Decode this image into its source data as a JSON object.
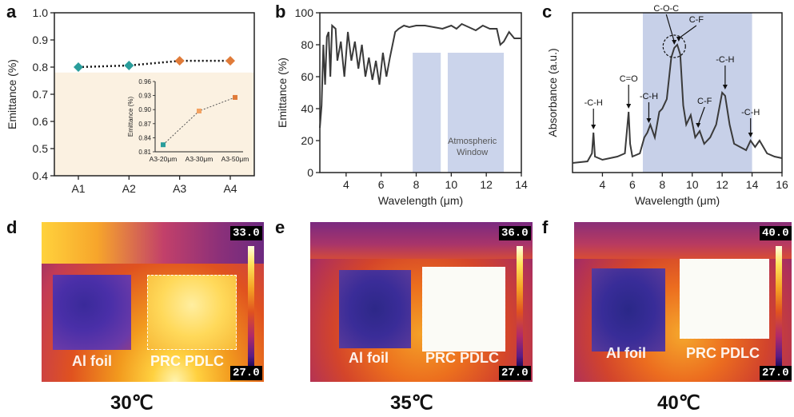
{
  "panels": {
    "a": "a",
    "b": "b",
    "c": "c",
    "d": "d",
    "e": "e",
    "f": "f"
  },
  "chart_data": [
    {
      "id": "a",
      "type": "scatter",
      "categories": [
        "A1",
        "A2",
        "A3",
        "A4"
      ],
      "values": [
        0.8,
        0.806,
        0.823,
        0.823
      ],
      "colors": [
        "#2a9d9b",
        "#2a9d9b",
        "#e07b39",
        "#e07b39"
      ],
      "xlabel": "",
      "ylabel": "Emittance (%)",
      "ylim": [
        0.4,
        1.0
      ],
      "yticks": [
        "0.4",
        "0.5",
        "0.6",
        "0.7",
        "0.8",
        "0.9",
        "1.0"
      ],
      "shaded_below": 0.78,
      "shade_color": "#fbf1e1",
      "inset": {
        "type": "scatter",
        "categories": [
          "A3-20μm",
          "A3-30μm",
          "A3-50μm"
        ],
        "values": [
          0.825,
          0.897,
          0.926
        ],
        "colors": [
          "#2a9d9b",
          "#f4a261",
          "#e07b39"
        ],
        "ylabel": "Emittance (%)",
        "ylim": [
          0.81,
          0.96
        ],
        "yticks": [
          "0.81",
          "0.84",
          "0.87",
          "0.90",
          "0.93",
          "0.96"
        ]
      }
    },
    {
      "id": "b",
      "type": "line",
      "xlabel": "Wavelength (μm)",
      "ylabel": "Emittance (%)",
      "xlim": [
        2.5,
        14
      ],
      "ylim": [
        0,
        100
      ],
      "xticks": [
        "4",
        "6",
        "8",
        "10",
        "12",
        "14"
      ],
      "yticks": [
        "0",
        "20",
        "40",
        "60",
        "80",
        "100"
      ],
      "annotation": "Atmospheric\nWindow",
      "window_color": "#b9c6e4",
      "series": [
        {
          "x": [
            2.5,
            2.6,
            2.7,
            2.8,
            2.9,
            3.0,
            3.1,
            3.2,
            3.4,
            3.5,
            3.7,
            3.9,
            4.1,
            4.3,
            4.5,
            4.7,
            4.9,
            5.1,
            5.3,
            5.5,
            5.7,
            5.9,
            6.1,
            6.3,
            6.5,
            6.8,
            7.0,
            7.3,
            7.6,
            8.0,
            8.5,
            9.0,
            9.5,
            10.0,
            10.3,
            10.6,
            11.0,
            11.4,
            11.8,
            12.2,
            12.6,
            12.8,
            13.0,
            13.3,
            13.6,
            14.0
          ],
          "y": [
            28,
            42,
            80,
            55,
            85,
            88,
            60,
            92,
            90,
            70,
            82,
            60,
            88,
            70,
            82,
            65,
            80,
            60,
            72,
            58,
            70,
            55,
            75,
            60,
            72,
            88,
            90,
            92,
            91,
            92,
            92,
            91,
            90,
            92,
            90,
            93,
            91,
            89,
            92,
            90,
            90,
            80,
            82,
            88,
            84,
            84
          ]
        }
      ],
      "window_bands": [
        {
          "x": [
            7.8,
            9.4
          ],
          "top": 75
        },
        {
          "x": [
            9.8,
            13.0
          ],
          "top": 75
        }
      ]
    },
    {
      "id": "c",
      "type": "line",
      "xlabel": "Wavelength (μm)",
      "ylabel": "Absorbance (a.u.)",
      "xlim": [
        2,
        16
      ],
      "ylim": [
        0,
        1
      ],
      "xticks": [
        "4",
        "6",
        "8",
        "10",
        "12",
        "14",
        "16"
      ],
      "shade_range": [
        6.7,
        14
      ],
      "shade_color": "#c7d0e8",
      "series": [
        {
          "x": [
            2.0,
            3.0,
            3.3,
            3.4,
            3.5,
            4.0,
            4.5,
            5.0,
            5.5,
            5.75,
            5.85,
            6.0,
            6.5,
            6.8,
            7.0,
            7.2,
            7.5,
            7.8,
            8.0,
            8.3,
            8.6,
            8.8,
            9.0,
            9.2,
            9.4,
            9.6,
            9.9,
            10.2,
            10.5,
            10.8,
            11.2,
            11.6,
            12.0,
            12.2,
            12.5,
            12.8,
            13.2,
            13.6,
            13.9,
            14.2,
            14.5,
            15.0,
            15.5,
            16.0
          ],
          "y": [
            0.06,
            0.07,
            0.12,
            0.25,
            0.1,
            0.08,
            0.09,
            0.1,
            0.12,
            0.38,
            0.18,
            0.1,
            0.12,
            0.22,
            0.25,
            0.3,
            0.22,
            0.38,
            0.4,
            0.46,
            0.72,
            0.78,
            0.8,
            0.74,
            0.42,
            0.3,
            0.36,
            0.22,
            0.26,
            0.18,
            0.22,
            0.3,
            0.5,
            0.48,
            0.3,
            0.18,
            0.16,
            0.14,
            0.2,
            0.16,
            0.2,
            0.12,
            0.1,
            0.09
          ]
        }
      ],
      "annotations": [
        {
          "text": "-C-H",
          "x": 3.4,
          "y": 0.25
        },
        {
          "text": "C=O",
          "x": 5.75,
          "y": 0.38
        },
        {
          "text": "-C-H",
          "x": 7.1,
          "y": 0.29
        },
        {
          "text": "C-O-C",
          "x": 8.8,
          "y": 0.78
        },
        {
          "text": "C-F",
          "x": 9.1,
          "y": 0.8
        },
        {
          "text": "C-F",
          "x": 10.4,
          "y": 0.26
        },
        {
          "text": "-C-H",
          "x": 12.2,
          "y": 0.5
        },
        {
          "text": "-C-H",
          "x": 13.9,
          "y": 0.2
        }
      ]
    }
  ],
  "thermal_images": [
    {
      "id": "d",
      "max": "33.0",
      "min": "27.0",
      "left_label": "Al foil",
      "right_label": "PRC PDLC",
      "caption": "30℃"
    },
    {
      "id": "e",
      "max": "36.0",
      "min": "27.0",
      "left_label": "Al foil",
      "right_label": "PRC PDLC",
      "caption": "35℃"
    },
    {
      "id": "f",
      "max": "40.0",
      "min": "27.0",
      "left_label": "Al foil",
      "right_label": "PRC PDLC",
      "caption": "40℃"
    }
  ]
}
